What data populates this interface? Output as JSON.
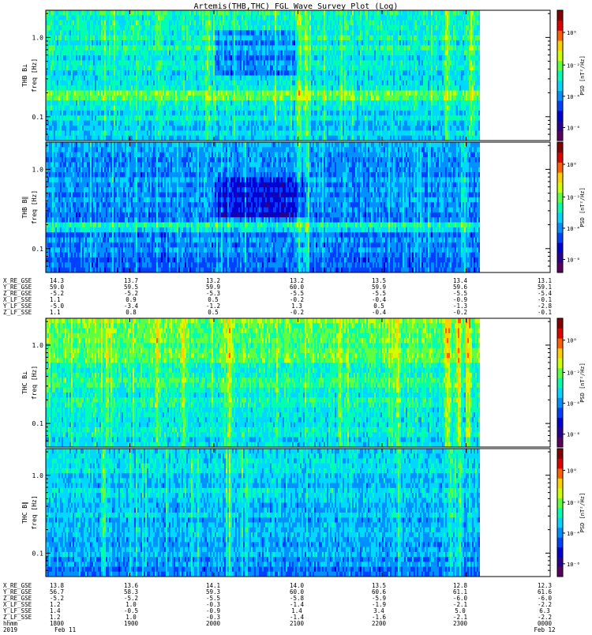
{
  "title": "Artemis(THB,THC) FGL Wave Survey Plot (Log)",
  "colormap": [
    "#5a0060",
    "#2a0090",
    "#0000d0",
    "#0040ff",
    "#0090ff",
    "#00d8ff",
    "#00ffb0",
    "#60ff40",
    "#d0ff00",
    "#ffd000",
    "#ff6000",
    "#e00000",
    "#8a0000"
  ],
  "panels": [
    {
      "id": "thb-bperp",
      "probe": "THB",
      "ylabel_top": "THB B⊥",
      "ylabel_bottom": "freq [Hz]",
      "yticks": [
        "1.0",
        "0.1"
      ],
      "cbar_label": "PSD [nT²/Hz]",
      "cbar_ticks": [
        "10⁰",
        "10⁻²",
        "10⁻⁴",
        "10⁻⁶"
      ]
    },
    {
      "id": "thb-bpar",
      "probe": "THB",
      "ylabel_top": "THB B∥",
      "ylabel_bottom": "freq [Hz]",
      "yticks": [
        "1.0",
        "0.1"
      ],
      "cbar_label": "PSD [nT²/Hz]",
      "cbar_ticks": [
        "10⁰",
        "10⁻²",
        "10⁻⁴",
        "10⁻⁶"
      ]
    },
    {
      "id": "thc-bperp",
      "probe": "THC",
      "ylabel_top": "THC B⊥",
      "ylabel_bottom": "freq [Hz]",
      "yticks": [
        "1.0",
        "0.1"
      ],
      "cbar_label": "PSD [nT²/Hz]",
      "cbar_ticks": [
        "10⁰",
        "10⁻²",
        "10⁻⁴",
        "10⁻⁶"
      ]
    },
    {
      "id": "thc-bpar",
      "probe": "THC",
      "ylabel_top": "THC B∥",
      "ylabel_bottom": "freq [Hz]",
      "yticks": [
        "1.0",
        "0.1"
      ],
      "cbar_label": "PSD [nT²/Hz]",
      "cbar_ticks": [
        "10⁰",
        "10⁻²",
        "10⁻⁴",
        "10⁻⁶"
      ]
    }
  ],
  "chart_data": {
    "type": "heatmap",
    "title": "Artemis(THB,THC) FGL Wave Survey Plot (Log)",
    "x_time_labels": [
      "1800",
      "1900",
      "2000",
      "2100",
      "2200",
      "2300",
      "0000"
    ],
    "y_scale": "log",
    "ylim_hz": [
      0.05,
      2.2
    ],
    "colorbar_scale": "log",
    "colorbar_range": [
      1e-07,
      10
    ],
    "thb_ephemeris": [
      {
        "label": "X_RE_GSE",
        "values": [
          "14.3",
          "13.7",
          "13.2",
          "13.2",
          "13.5",
          "13.4",
          "13.1"
        ]
      },
      {
        "label": "Y_RE_GSE",
        "values": [
          "59.0",
          "59.5",
          "59.9",
          "60.0",
          "59.9",
          "59.6",
          "59.1"
        ]
      },
      {
        "label": "Z_RE_GSE",
        "values": [
          "-5.2",
          "-5.2",
          "-5.3",
          "-5.5",
          "-5.5",
          "-5.5",
          "-5.4"
        ]
      },
      {
        "label": "X_LF_SSE",
        "values": [
          "1.1",
          "0.9",
          "0.5",
          "-0.2",
          "-0.4",
          "-0.9",
          "-0.1"
        ]
      },
      {
        "label": "Y_LF_SSE",
        "values": [
          "-5.0",
          "-3.4",
          "-1.2",
          "1.3",
          "0.5",
          "-1.3",
          "-2.8"
        ]
      },
      {
        "label": "Z_LF_SSE",
        "values": [
          "1.1",
          "0.8",
          "0.5",
          "-0.2",
          "-0.4",
          "-0.2",
          "-0.1"
        ]
      }
    ],
    "thc_ephemeris": [
      {
        "label": "X_RE_GSE",
        "values": [
          "13.8",
          "13.6",
          "14.1",
          "14.0",
          "13.5",
          "12.8",
          "12.3"
        ]
      },
      {
        "label": "Y_RE_GSE",
        "values": [
          "56.7",
          "58.3",
          "59.3",
          "60.0",
          "60.6",
          "61.1",
          "61.6"
        ]
      },
      {
        "label": "Z_RE_GSE",
        "values": [
          "-5.2",
          "-5.2",
          "-5.5",
          "-5.8",
          "-5.9",
          "-6.0",
          "-6.0"
        ]
      },
      {
        "label": "X_LF_SSE",
        "values": [
          "1.2",
          "1.0",
          "-0.3",
          "-1.4",
          "-1.9",
          "-2.1",
          "-2.2"
        ]
      },
      {
        "label": "Y_LF_SSE",
        "values": [
          "1.4",
          "-0.5",
          "-0.9",
          "1.4",
          "3.4",
          "5.0",
          "6.3"
        ]
      },
      {
        "label": "Z_LF_SSE",
        "values": [
          "1.2",
          "1.0",
          "-0.3",
          "-1.4",
          "-1.6",
          "-2.1",
          "-2.2"
        ]
      }
    ],
    "time_row_label": "hhmm",
    "date_row": {
      "label": "2019",
      "start": "Feb 11",
      "end": "Feb 12"
    }
  }
}
